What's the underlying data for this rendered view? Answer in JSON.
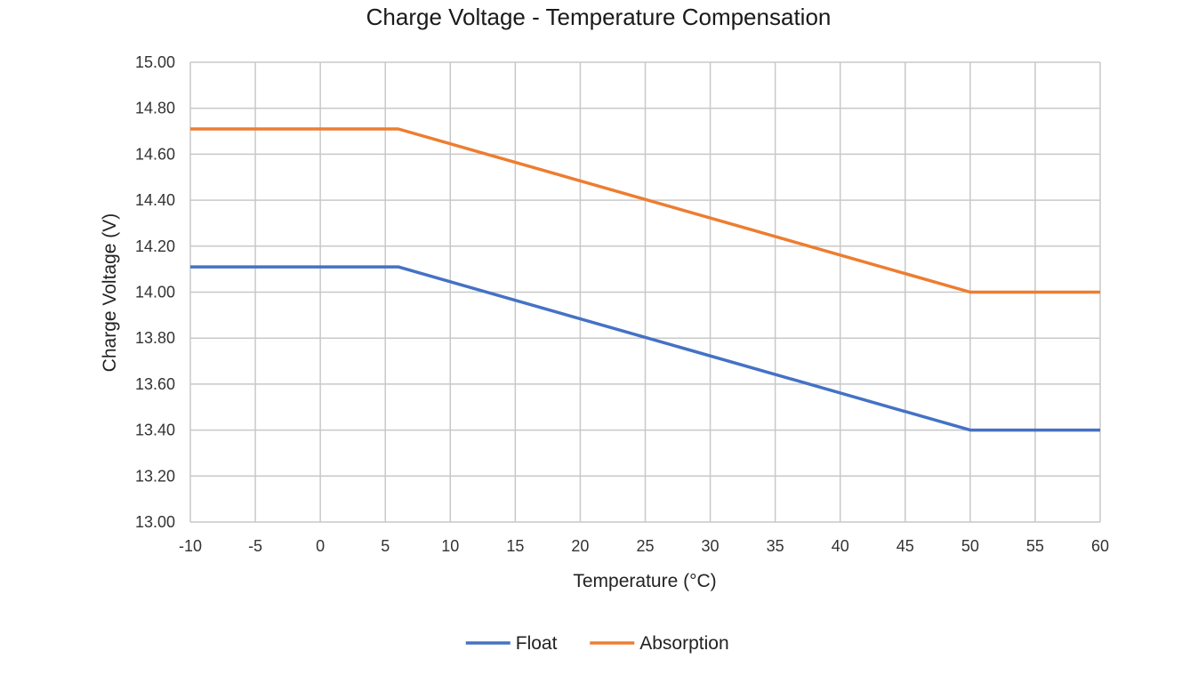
{
  "chart_data": {
    "type": "line",
    "title": "Charge Voltage - Temperature Compensation",
    "xlabel": "Temperature (°C)",
    "ylabel": "Charge Voltage (V)",
    "xlim": [
      -10,
      60
    ],
    "ylim": [
      13.0,
      15.0
    ],
    "x_ticks": [
      -10,
      -5,
      0,
      5,
      10,
      15,
      20,
      25,
      30,
      35,
      40,
      45,
      50,
      55,
      60
    ],
    "x_tick_labels": [
      "-10",
      "-5",
      "0",
      "5",
      "10",
      "15",
      "20",
      "25",
      "30",
      "35",
      "40",
      "45",
      "50",
      "55",
      "60"
    ],
    "y_ticks": [
      13.0,
      13.2,
      13.4,
      13.6,
      13.8,
      14.0,
      14.2,
      14.4,
      14.6,
      14.8,
      15.0
    ],
    "y_tick_labels": [
      "13.00",
      "13.20",
      "13.40",
      "13.60",
      "13.80",
      "14.00",
      "14.20",
      "14.40",
      "14.60",
      "14.80",
      "15.00"
    ],
    "grid": true,
    "legend_position": "bottom-center",
    "series": [
      {
        "name": "Float",
        "color": "#4472C4",
        "x": [
          -10,
          6,
          50,
          60
        ],
        "y": [
          14.11,
          14.11,
          13.4,
          13.4
        ]
      },
      {
        "name": "Absorption",
        "color": "#ED7D31",
        "x": [
          -10,
          6,
          50,
          60
        ],
        "y": [
          14.71,
          14.71,
          14.0,
          14.0
        ]
      }
    ]
  }
}
